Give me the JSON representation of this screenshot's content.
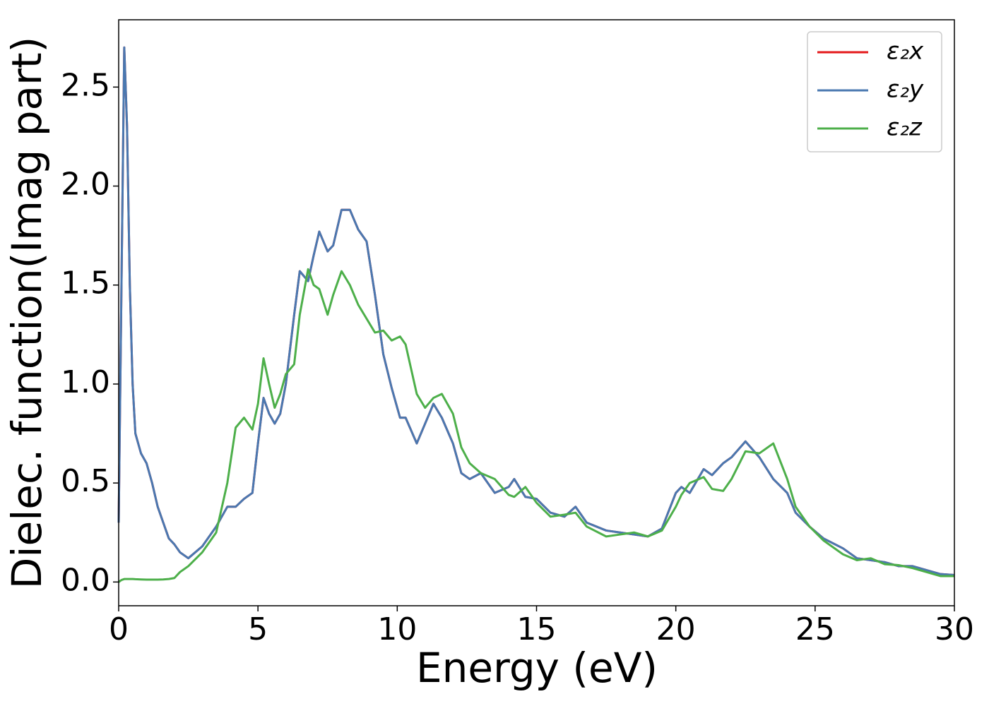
{
  "chart_data": {
    "type": "line",
    "xlabel": "Energy (eV)",
    "ylabel": "Dielec. function(Imag part)",
    "x": [
      0,
      0.1,
      0.2,
      0.3,
      0.4,
      0.5,
      0.6,
      0.8,
      1.0,
      1.2,
      1.4,
      1.6,
      1.8,
      2.0,
      2.2,
      2.5,
      3.0,
      3.5,
      3.9,
      4.2,
      4.5,
      4.8,
      5.0,
      5.2,
      5.4,
      5.6,
      5.8,
      6.0,
      6.3,
      6.5,
      6.8,
      7.0,
      7.2,
      7.5,
      7.7,
      8.0,
      8.3,
      8.6,
      8.9,
      9.2,
      9.5,
      9.8,
      10.1,
      10.3,
      10.7,
      11.0,
      11.3,
      11.6,
      12.0,
      12.3,
      12.6,
      13.0,
      13.5,
      14.0,
      14.2,
      14.6,
      15.0,
      15.5,
      16.0,
      16.4,
      16.8,
      17.5,
      18.0,
      18.5,
      19.0,
      19.5,
      20.0,
      20.2,
      20.5,
      21.0,
      21.3,
      21.7,
      22.0,
      22.5,
      23.0,
      23.5,
      24.0,
      24.3,
      24.8,
      25.3,
      26.0,
      26.5,
      27.0,
      27.5,
      28.0,
      28.5,
      29.0,
      29.5,
      30.0
    ],
    "series": [
      {
        "name": "ε₂x",
        "color": "#e41a1c",
        "values": [
          0.3,
          1.5,
          2.7,
          2.3,
          1.5,
          1.0,
          0.75,
          0.65,
          0.6,
          0.5,
          0.38,
          0.3,
          0.22,
          0.19,
          0.15,
          0.12,
          0.18,
          0.28,
          0.38,
          0.38,
          0.42,
          0.45,
          0.7,
          0.93,
          0.85,
          0.8,
          0.85,
          1.0,
          1.35,
          1.57,
          1.52,
          1.65,
          1.77,
          1.67,
          1.7,
          1.88,
          1.88,
          1.78,
          1.72,
          1.45,
          1.15,
          0.98,
          0.83,
          0.83,
          0.7,
          0.8,
          0.9,
          0.83,
          0.7,
          0.55,
          0.52,
          0.55,
          0.45,
          0.48,
          0.52,
          0.43,
          0.42,
          0.35,
          0.33,
          0.38,
          0.3,
          0.26,
          0.25,
          0.24,
          0.23,
          0.27,
          0.45,
          0.48,
          0.45,
          0.57,
          0.54,
          0.6,
          0.63,
          0.71,
          0.63,
          0.52,
          0.45,
          0.35,
          0.28,
          0.22,
          0.17,
          0.12,
          0.11,
          0.1,
          0.08,
          0.08,
          0.06,
          0.04,
          0.035
        ]
      },
      {
        "name": "ε₂y",
        "color": "#4a78b0",
        "values": [
          0.3,
          1.5,
          2.7,
          2.3,
          1.5,
          1.0,
          0.75,
          0.65,
          0.6,
          0.5,
          0.38,
          0.3,
          0.22,
          0.19,
          0.15,
          0.12,
          0.18,
          0.28,
          0.38,
          0.38,
          0.42,
          0.45,
          0.7,
          0.93,
          0.85,
          0.8,
          0.85,
          1.0,
          1.35,
          1.57,
          1.52,
          1.65,
          1.77,
          1.67,
          1.7,
          1.88,
          1.88,
          1.78,
          1.72,
          1.45,
          1.15,
          0.98,
          0.83,
          0.83,
          0.7,
          0.8,
          0.9,
          0.83,
          0.7,
          0.55,
          0.52,
          0.55,
          0.45,
          0.48,
          0.52,
          0.43,
          0.42,
          0.35,
          0.33,
          0.38,
          0.3,
          0.26,
          0.25,
          0.24,
          0.23,
          0.27,
          0.45,
          0.48,
          0.45,
          0.57,
          0.54,
          0.6,
          0.63,
          0.71,
          0.63,
          0.52,
          0.45,
          0.35,
          0.28,
          0.22,
          0.17,
          0.12,
          0.11,
          0.1,
          0.08,
          0.08,
          0.06,
          0.04,
          0.035
        ]
      },
      {
        "name": "ε₂z",
        "color": "#4daf4a",
        "values": [
          0,
          0.01,
          0.015,
          0.015,
          0.015,
          0.015,
          0.014,
          0.013,
          0.012,
          0.012,
          0.012,
          0.013,
          0.015,
          0.02,
          0.05,
          0.08,
          0.15,
          0.25,
          0.5,
          0.78,
          0.83,
          0.77,
          0.9,
          1.13,
          1.0,
          0.88,
          0.95,
          1.05,
          1.1,
          1.35,
          1.58,
          1.5,
          1.48,
          1.35,
          1.45,
          1.57,
          1.5,
          1.4,
          1.33,
          1.26,
          1.27,
          1.22,
          1.24,
          1.2,
          0.95,
          0.88,
          0.93,
          0.95,
          0.85,
          0.68,
          0.6,
          0.55,
          0.52,
          0.44,
          0.43,
          0.48,
          0.4,
          0.33,
          0.34,
          0.35,
          0.28,
          0.23,
          0.24,
          0.25,
          0.23,
          0.26,
          0.38,
          0.44,
          0.5,
          0.53,
          0.47,
          0.46,
          0.52,
          0.66,
          0.65,
          0.7,
          0.52,
          0.38,
          0.28,
          0.21,
          0.14,
          0.11,
          0.12,
          0.09,
          0.085,
          0.07,
          0.05,
          0.03,
          0.03
        ]
      }
    ],
    "xlim": [
      0,
      30
    ],
    "xticks": [
      0,
      5,
      10,
      15,
      20,
      25,
      30
    ],
    "ylim": [
      -0.12,
      2.84
    ],
    "yticks": [
      {
        "value": 0,
        "label": "0.0"
      },
      0.5,
      {
        "value": 1,
        "label": "1.0"
      },
      1.5,
      {
        "value": 2,
        "label": "2.0"
      },
      2.5
    ],
    "legend": "upper right",
    "grid": false
  }
}
